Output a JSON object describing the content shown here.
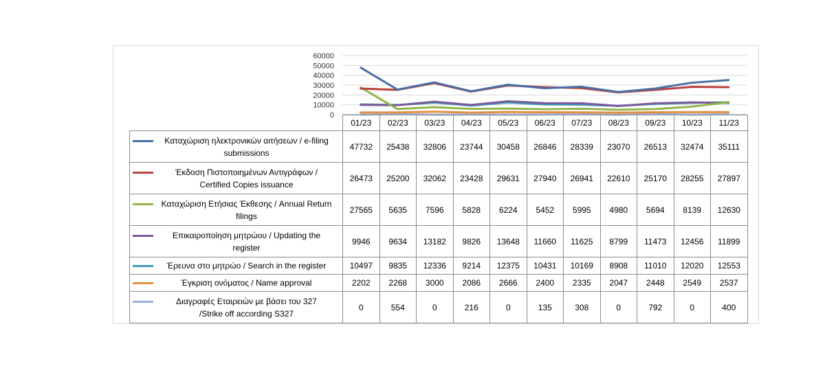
{
  "chart_data": {
    "type": "line",
    "categories": [
      "01/23",
      "02/23",
      "03/23",
      "04/23",
      "05/23",
      "06/23",
      "07/23",
      "08/23",
      "09/23",
      "10/23",
      "11/23"
    ],
    "ylim": [
      0,
      60000
    ],
    "yticks": [
      "60000",
      "50000",
      "40000",
      "30000",
      "20000",
      "10000",
      "0"
    ],
    "grid": true,
    "legend": "data table below plot",
    "series": [
      {
        "name": "Καταχώριση ηλεκτρονικών αιτήσεων / e-filing submissions",
        "color": "#4a6fa5",
        "values": [
          47732,
          25438,
          32806,
          23744,
          30458,
          26846,
          28339,
          23070,
          26513,
          32474,
          35111
        ]
      },
      {
        "name": "Έκδοση Πιστοποιημένων Αντιγράφων / Certified Copies issuance",
        "color": "#b9413f",
        "values": [
          26473,
          25200,
          32062,
          23428,
          29631,
          27940,
          26941,
          22610,
          25170,
          28255,
          27897
        ]
      },
      {
        "name": "Καταχώριση Ετήσιας Έκθεσης / Annual Return filings",
        "color": "#93b54c",
        "values": [
          27565,
          5635,
          7596,
          5828,
          6224,
          5452,
          5995,
          4980,
          5694,
          8139,
          12630
        ]
      },
      {
        "name": "Επικαιροποίηση μητρώου / Updating the register",
        "color": "#7a5b99",
        "values": [
          9946,
          9634,
          13182,
          9826,
          13648,
          11660,
          11625,
          8799,
          11473,
          12456,
          11899
        ]
      },
      {
        "name": "Έρευνα στο μητρώο / Search in the register",
        "color": "#3d9bb5",
        "values": [
          10497,
          9835,
          12336,
          9214,
          12375,
          10431,
          10169,
          8908,
          11010,
          12020,
          12553
        ]
      },
      {
        "name": "Έγκριση ονόματος / Name approval",
        "color": "#e98c3f",
        "values": [
          2202,
          2268,
          3000,
          2086,
          2666,
          2400,
          2335,
          2047,
          2448,
          2549,
          2537
        ]
      },
      {
        "name": "Διαγραφές Εταιρειών με βάσει του 327 /Strike off according S327",
        "color": "#98b2d8",
        "values": [
          0,
          554,
          0,
          216,
          0,
          135,
          308,
          0,
          792,
          0,
          400
        ]
      }
    ]
  },
  "table": {
    "rows": [
      {
        "label_lines": [
          "Καταχώριση ηλεκτρονικών αιτήσεων / e-filing",
          "submissions"
        ]
      },
      {
        "label_lines": [
          "Έκδοση Πιστοποιημένων Αντιγράφων /",
          "Certified Copies issuance"
        ]
      },
      {
        "label_lines": [
          "Καταχώριση Ετήσιας Έκθεσης / Annual Return",
          "filings"
        ]
      },
      {
        "label_lines": [
          "Επικαιροποίηση μητρώου / Updating the",
          "register"
        ]
      },
      {
        "label_lines": [
          "Έρευνα στο μητρώο / Search in the register"
        ]
      },
      {
        "label_lines": [
          "Έγκριση ονόματος / Name approval"
        ]
      },
      {
        "label_lines": [
          "Διαγραφές Εταιρειών  με βάσει του 327",
          "/Strike off according S327"
        ]
      }
    ]
  }
}
